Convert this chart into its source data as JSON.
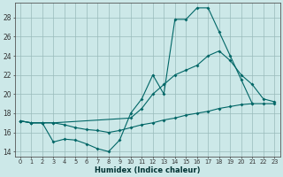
{
  "bg_color": "#cce8e8",
  "grid_color": "#99bbbb",
  "line_color": "#006666",
  "xlabel": "Humidex (Indice chaleur)",
  "xlim": [
    -0.5,
    23.5
  ],
  "ylim": [
    13.5,
    29.5
  ],
  "line1_x": [
    0,
    1,
    2,
    3,
    4,
    5,
    6,
    7,
    8,
    9,
    10,
    11,
    12,
    13,
    14,
    15,
    16,
    17,
    18,
    19,
    20,
    21
  ],
  "line1_y": [
    17.2,
    17.0,
    17.0,
    15.0,
    15.3,
    15.2,
    14.8,
    14.3,
    14.0,
    15.2,
    18.0,
    19.5,
    22.0,
    20.0,
    27.8,
    27.8,
    29.0,
    29.0,
    26.5,
    24.0,
    21.5,
    19.0
  ],
  "line2_x": [
    0,
    1,
    2,
    3,
    10,
    11,
    12,
    13,
    14,
    15,
    16,
    17,
    18,
    19,
    20,
    21,
    22,
    23
  ],
  "line2_y": [
    17.2,
    17.0,
    17.0,
    17.0,
    17.5,
    18.5,
    20.0,
    21.0,
    22.0,
    22.5,
    23.0,
    24.0,
    24.5,
    23.5,
    22.0,
    21.0,
    19.5,
    19.2
  ],
  "line3_x": [
    0,
    1,
    2,
    3,
    4,
    5,
    6,
    7,
    8,
    9,
    10,
    11,
    12,
    13,
    14,
    15,
    16,
    17,
    18,
    19,
    20,
    21,
    22,
    23
  ],
  "line3_y": [
    17.2,
    17.0,
    17.0,
    17.0,
    16.8,
    16.5,
    16.3,
    16.2,
    16.0,
    16.2,
    16.5,
    16.8,
    17.0,
    17.3,
    17.5,
    17.8,
    18.0,
    18.2,
    18.5,
    18.7,
    18.9,
    19.0,
    19.0,
    19.0
  ]
}
